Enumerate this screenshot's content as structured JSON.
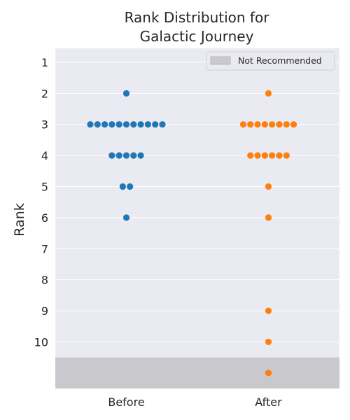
{
  "chart_data": {
    "type": "scatter",
    "title_lines": [
      "Rank Distribution for",
      "Galactic Journey"
    ],
    "xlabel": "",
    "ylabel": "Rank",
    "categories": [
      "Before",
      "After"
    ],
    "y_ticks": [
      "1",
      "2",
      "3",
      "4",
      "5",
      "6",
      "7",
      "8",
      "9",
      "10"
    ],
    "ylim": [
      0.55,
      11.5
    ],
    "y_inverted": true,
    "grid": true,
    "legend": {
      "position": "top-right",
      "label": "Not Recommended"
    },
    "shaded_region": {
      "from_rank": 10.5,
      "label": "Not Recommended"
    },
    "series": [
      {
        "category": "Before",
        "values": [
          2,
          3,
          3,
          3,
          3,
          3,
          3,
          3,
          3,
          3,
          3,
          3,
          4,
          4,
          4,
          4,
          4,
          5,
          5,
          6
        ]
      },
      {
        "category": "After",
        "values": [
          2,
          3,
          3,
          3,
          3,
          3,
          3,
          3,
          3,
          4,
          4,
          4,
          4,
          4,
          4,
          5,
          6,
          9,
          10,
          11
        ]
      }
    ],
    "colors": {
      "Before": "#1f77b4",
      "After": "#ff7f0e",
      "plot_background": "#eaeaf2",
      "grid": "#ffffff",
      "shade": "#c9c8cd"
    }
  }
}
